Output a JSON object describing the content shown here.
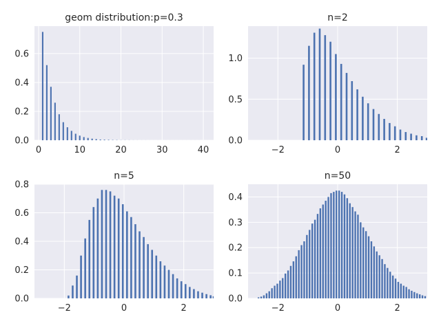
{
  "chart_data": [
    {
      "type": "bar",
      "title": "geom distribution:p=0.3",
      "xlim": [
        -1.0,
        42.5
      ],
      "ylim": [
        0,
        0.79
      ],
      "xticks": [
        0,
        10,
        20,
        30,
        40
      ],
      "xtick_labels": [
        "0",
        "10",
        "20",
        "30",
        "40"
      ],
      "yticks": [
        0.0,
        0.2,
        0.4,
        0.6
      ],
      "ytick_labels": [
        "0.0",
        "0.2",
        "0.4",
        "0.6"
      ],
      "bar_width": 0.35,
      "bar_color": "#4c72b0",
      "x": [
        0,
        1,
        2,
        3,
        4,
        5,
        6,
        7,
        8,
        9,
        10,
        11,
        12,
        13,
        14,
        15,
        16,
        17,
        18,
        19,
        20,
        21,
        22,
        23,
        24,
        25,
        26,
        27,
        28,
        29,
        30,
        31,
        32,
        33,
        34,
        35,
        36,
        37,
        38,
        39,
        40,
        41
      ],
      "values": [
        0.0,
        0.75,
        0.52,
        0.37,
        0.26,
        0.18,
        0.125,
        0.09,
        0.065,
        0.045,
        0.032,
        0.022,
        0.016,
        0.011,
        0.008,
        0.005,
        0.004,
        0.003,
        0.002,
        0.0015,
        0.001,
        0.0008,
        0.0006,
        0.0004,
        0.0003,
        0.0002,
        0.0002,
        0.0001,
        0.0001,
        0.0001,
        0.0001,
        0.0001,
        0.0001,
        0.0001,
        0.0001,
        0.0001,
        0.0001,
        0.0001,
        0.0001,
        0.0001,
        0.0001,
        0.0001
      ]
    },
    {
      "type": "bar",
      "title": "n=2",
      "xlim": [
        -3,
        3
      ],
      "ylim": [
        0,
        1.39
      ],
      "xticks": [
        -2,
        0,
        2
      ],
      "xtick_labels": [
        "−2",
        "0",
        "2"
      ],
      "yticks": [
        0.0,
        0.5,
        1.0
      ],
      "ytick_labels": [
        "0.0",
        "0.5",
        "1.0"
      ],
      "bar_width": 0.06,
      "bar_color": "#4c72b0",
      "x": [
        -1.14,
        -0.96,
        -0.78,
        -0.6,
        -0.42,
        -0.24,
        -0.06,
        0.12,
        0.3,
        0.48,
        0.66,
        0.84,
        1.02,
        1.2,
        1.38,
        1.56,
        1.74,
        1.92,
        2.1,
        2.28,
        2.46,
        2.64,
        2.82,
        2.98
      ],
      "values": [
        0.92,
        1.15,
        1.31,
        1.36,
        1.28,
        1.2,
        1.05,
        0.93,
        0.82,
        0.72,
        0.62,
        0.53,
        0.45,
        0.38,
        0.32,
        0.26,
        0.21,
        0.17,
        0.13,
        0.1,
        0.08,
        0.06,
        0.05,
        0.03
      ]
    },
    {
      "type": "bar",
      "title": "n=5",
      "xlim": [
        -3,
        3
      ],
      "ylim": [
        0,
        0.8
      ],
      "xticks": [
        -2,
        0,
        2
      ],
      "xtick_labels": [
        "−2",
        "0",
        "2"
      ],
      "yticks": [
        0.0,
        0.2,
        0.4,
        0.6,
        0.8
      ],
      "ytick_labels": [
        "0.0",
        "0.2",
        "0.4",
        "0.6",
        "0.8"
      ],
      "bar_width": 0.06,
      "bar_color": "#4c72b0",
      "x": [
        -1.86,
        -1.72,
        -1.58,
        -1.44,
        -1.3,
        -1.16,
        -1.02,
        -0.88,
        -0.74,
        -0.6,
        -0.46,
        -0.32,
        -0.18,
        -0.04,
        0.1,
        0.24,
        0.38,
        0.52,
        0.66,
        0.8,
        0.94,
        1.08,
        1.22,
        1.36,
        1.5,
        1.64,
        1.78,
        1.92,
        2.06,
        2.2,
        2.34,
        2.48,
        2.62,
        2.76,
        2.9,
        3.0
      ],
      "values": [
        0.02,
        0.09,
        0.16,
        0.3,
        0.42,
        0.55,
        0.64,
        0.7,
        0.76,
        0.76,
        0.75,
        0.72,
        0.7,
        0.66,
        0.61,
        0.57,
        0.52,
        0.47,
        0.43,
        0.38,
        0.34,
        0.3,
        0.26,
        0.23,
        0.2,
        0.17,
        0.14,
        0.12,
        0.1,
        0.08,
        0.065,
        0.05,
        0.04,
        0.03,
        0.022,
        0.015
      ]
    },
    {
      "type": "bar",
      "title": "n=50",
      "xlim": [
        -3,
        3
      ],
      "ylim": [
        0,
        0.45
      ],
      "xticks": [
        -2,
        0,
        2
      ],
      "xtick_labels": [
        "−2",
        "0",
        "2"
      ],
      "yticks": [
        0.0,
        0.1,
        0.2,
        0.3,
        0.4
      ],
      "ytick_labels": [
        "0.0",
        "0.1",
        "0.2",
        "0.3",
        "0.4"
      ],
      "bar_width": 0.055,
      "bar_color": "#4c72b0",
      "x": [
        -2.65,
        -2.56,
        -2.47,
        -2.38,
        -2.29,
        -2.2,
        -2.11,
        -2.02,
        -1.93,
        -1.84,
        -1.75,
        -1.66,
        -1.57,
        -1.48,
        -1.39,
        -1.3,
        -1.21,
        -1.12,
        -1.03,
        -0.94,
        -0.85,
        -0.76,
        -0.67,
        -0.58,
        -0.49,
        -0.4,
        -0.31,
        -0.22,
        -0.13,
        -0.04,
        0.05,
        0.14,
        0.23,
        0.32,
        0.41,
        0.5,
        0.59,
        0.68,
        0.77,
        0.86,
        0.95,
        1.04,
        1.13,
        1.22,
        1.31,
        1.4,
        1.49,
        1.58,
        1.67,
        1.76,
        1.85,
        1.94,
        2.03,
        2.12,
        2.21,
        2.3,
        2.39,
        2.48,
        2.57,
        2.66,
        2.75,
        2.84,
        2.93
      ],
      "values": [
        0.004,
        0.007,
        0.012,
        0.02,
        0.028,
        0.04,
        0.05,
        0.058,
        0.07,
        0.08,
        0.098,
        0.11,
        0.128,
        0.146,
        0.166,
        0.19,
        0.21,
        0.225,
        0.25,
        0.27,
        0.295,
        0.31,
        0.333,
        0.355,
        0.37,
        0.385,
        0.4,
        0.415,
        0.42,
        0.425,
        0.425,
        0.42,
        0.41,
        0.395,
        0.375,
        0.36,
        0.343,
        0.33,
        0.3,
        0.28,
        0.265,
        0.245,
        0.225,
        0.205,
        0.185,
        0.17,
        0.155,
        0.135,
        0.12,
        0.105,
        0.09,
        0.078,
        0.065,
        0.058,
        0.05,
        0.045,
        0.036,
        0.03,
        0.025,
        0.02,
        0.016,
        0.012,
        0.009
      ]
    }
  ]
}
